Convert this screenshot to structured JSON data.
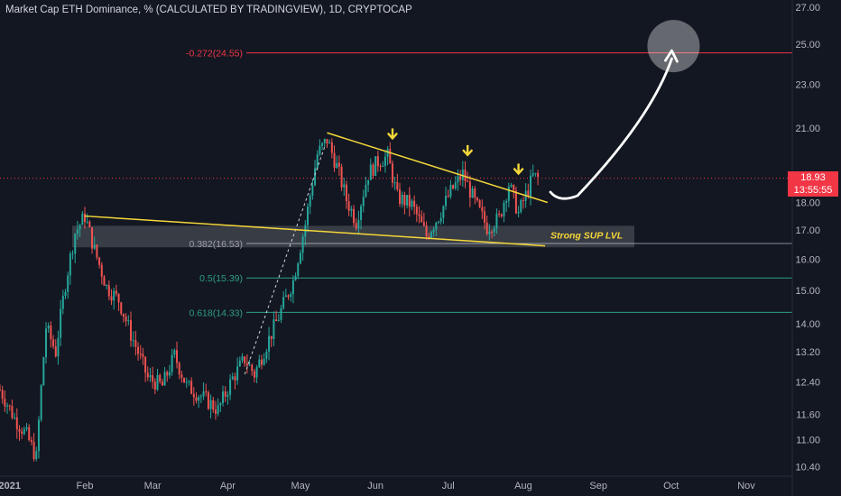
{
  "header": {
    "title": "Market Cap ETH Dominance, % (CALCULATED BY TRADINGVIEW), 1D, CRYPTOCAP"
  },
  "price_tag": {
    "value": "18.93",
    "countdown": "13:55:55",
    "color": "#f23645"
  },
  "colors": {
    "background": "#131722",
    "up": "#26a69a",
    "down": "#ef5350",
    "trendline": "#f5d73a",
    "fib_green": "#2e9e82",
    "fib_red": "#f23645",
    "target": "#ffffff"
  },
  "chart_data": {
    "type": "candlestick",
    "title": "Market Cap ETH Dominance, % (CALCULATED BY TRADINGVIEW), 1D, CRYPTOCAP",
    "x_ticks": [
      "2021",
      "Feb",
      "Mar",
      "Apr",
      "May",
      "Jun",
      "Jul",
      "Aug",
      "Sep",
      "Oct",
      "Nov"
    ],
    "y_ticks": [
      "27.00",
      "25.00",
      "23.00",
      "21.00",
      "18.00",
      "17.00",
      "16.00",
      "15.00",
      "14.00",
      "13.20",
      "12.40",
      "11.60",
      "11.00",
      "10.40"
    ],
    "y_scale": "log",
    "ylim": [
      10.2,
      27.4
    ],
    "x_range": [
      "2020-12-28",
      "2021-11-20"
    ],
    "last_price": 18.93,
    "series_path": [
      [
        "2020-12-28",
        12.2
      ],
      [
        "2021-01-03",
        11.5
      ],
      [
        "2021-01-08",
        11.1
      ],
      [
        "2021-01-12",
        10.6
      ],
      [
        "2021-01-16",
        13.9
      ],
      [
        "2021-01-20",
        13.2
      ],
      [
        "2021-01-24",
        15.2
      ],
      [
        "2021-01-28",
        16.9
      ],
      [
        "2021-02-01",
        17.5
      ],
      [
        "2021-02-05",
        16.3
      ],
      [
        "2021-02-10",
        15.1
      ],
      [
        "2021-02-15",
        14.7
      ],
      [
        "2021-02-20",
        13.7
      ],
      [
        "2021-02-27",
        12.5
      ],
      [
        "2021-03-05",
        12.3
      ],
      [
        "2021-03-10",
        13.1
      ],
      [
        "2021-03-15",
        12.3
      ],
      [
        "2021-03-22",
        12.0
      ],
      [
        "2021-03-28",
        11.7
      ],
      [
        "2021-04-03",
        12.5
      ],
      [
        "2021-04-08",
        13.0
      ],
      [
        "2021-04-12",
        12.6
      ],
      [
        "2021-04-17",
        13.4
      ],
      [
        "2021-04-22",
        14.2
      ],
      [
        "2021-04-28",
        15.3
      ],
      [
        "2021-05-03",
        17.2
      ],
      [
        "2021-05-08",
        19.9
      ],
      [
        "2021-05-12",
        20.5
      ],
      [
        "2021-05-16",
        19.4
      ],
      [
        "2021-05-20",
        18.1
      ],
      [
        "2021-05-24",
        17.3
      ],
      [
        "2021-05-29",
        19.1
      ],
      [
        "2021-06-02",
        19.6
      ],
      [
        "2021-06-06",
        19.8
      ],
      [
        "2021-06-10",
        18.2
      ],
      [
        "2021-06-16",
        17.9
      ],
      [
        "2021-06-22",
        16.8
      ],
      [
        "2021-06-27",
        17.5
      ],
      [
        "2021-07-02",
        18.4
      ],
      [
        "2021-07-07",
        19.1
      ],
      [
        "2021-07-12",
        18.0
      ],
      [
        "2021-07-17",
        17.1
      ],
      [
        "2021-07-22",
        17.4
      ],
      [
        "2021-07-26",
        18.7
      ],
      [
        "2021-07-30",
        17.6
      ],
      [
        "2021-08-03",
        18.5
      ],
      [
        "2021-08-05",
        19.0
      ],
      [
        "2021-08-07",
        18.93
      ]
    ],
    "annotations": {
      "fib_levels": [
        {
          "label": "-0.272(24.55)",
          "value": 24.55,
          "color": "#f23645"
        },
        {
          "label": "0.382(16.53)",
          "value": 16.53,
          "color": "#8a8e99"
        },
        {
          "label": "0.5(15.39)",
          "value": 15.39,
          "color": "#2e9e82"
        },
        {
          "label": "0.618(14.33)",
          "value": 14.33,
          "color": "#2e9e82"
        }
      ],
      "support_zone": {
        "label": "Strong SUP LVL",
        "low": 16.4,
        "high": 17.15
      },
      "trendlines": [
        {
          "name": "upper",
          "from": [
            "2021-05-12",
            20.8
          ],
          "to": [
            "2021-08-11",
            18.0
          ]
        },
        {
          "name": "lower",
          "from": [
            "2021-02-01",
            17.5
          ],
          "to": [
            "2021-08-10",
            16.45
          ]
        }
      ],
      "dashed_line": {
        "from": [
          "2021-04-08",
          12.6
        ],
        "to": [
          "2021-05-11",
          20.2
        ]
      },
      "arrow_markers": [
        [
          "2021-06-08",
          20.6
        ],
        [
          "2021-07-09",
          19.9
        ],
        [
          "2021-07-30",
          19.15
        ]
      ],
      "target": {
        "date": "2021-10-02",
        "value": 24.9
      }
    }
  }
}
